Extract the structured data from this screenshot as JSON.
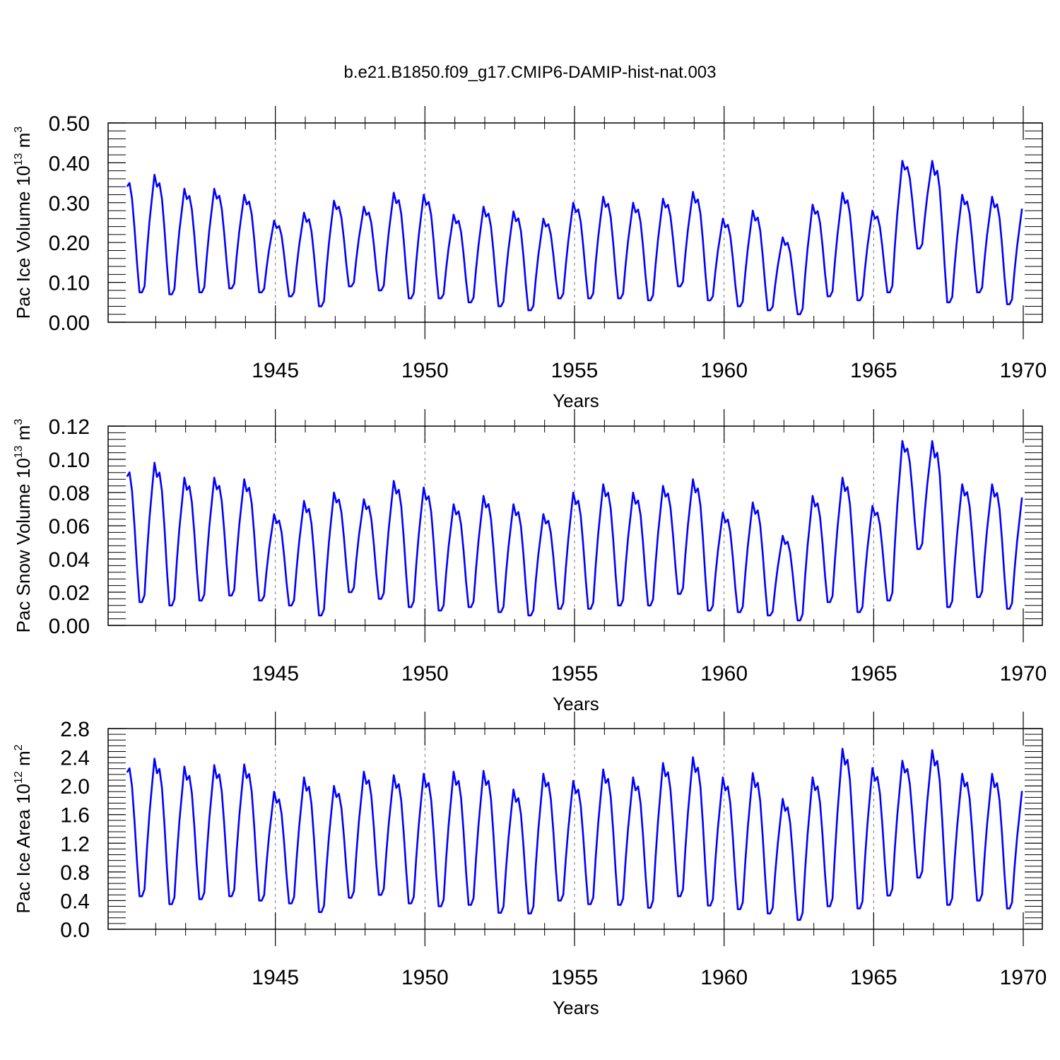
{
  "title": "b.e21.B1850.f09_g17.CMIP6-DAMIP-hist-nat.003",
  "colors": {
    "series": "#0000ff",
    "axis": "#000000",
    "grid": "#777777",
    "background": "#ffffff"
  },
  "chart_data": [
    {
      "type": "line",
      "ylabel": {
        "text": "Pac Ice Volume 10",
        "exponent": "13",
        "unit": "m",
        "unit_exponent": "3"
      },
      "xlabel": "Years",
      "xlim": [
        1940.0,
        1970.0
      ],
      "ylim": [
        0.0,
        0.5
      ],
      "y_ticks": [
        0.0,
        0.1,
        0.2,
        0.3,
        0.4,
        0.5
      ],
      "y_tick_labels": [
        "0.00",
        "0.10",
        "0.20",
        "0.30",
        "0.40",
        "0.50"
      ],
      "x_ticks": [
        1945,
        1950,
        1955,
        1960,
        1965,
        1970
      ],
      "x_tick_labels": [
        "1945",
        "1950",
        "1955",
        "1960",
        "1965",
        "1970"
      ],
      "grid": "vertical dashed at labeled years",
      "time_start": "1940-01",
      "frequency": "monthly",
      "series": [
        {
          "color": "#0000ff",
          "peaks": [
            0.37,
            0.335,
            0.335,
            0.32,
            0.255,
            0.275,
            0.305,
            0.29,
            0.325,
            0.32,
            0.27,
            0.29,
            0.278,
            0.26,
            0.3,
            0.315,
            0.3,
            0.31,
            0.327,
            0.26,
            0.28,
            0.213,
            0.295,
            0.325,
            0.28,
            0.405,
            0.405,
            0.32,
            0.315,
            0.285
          ],
          "troughs": [
            0.075,
            0.07,
            0.075,
            0.085,
            0.075,
            0.065,
            0.04,
            0.09,
            0.08,
            0.06,
            0.06,
            0.05,
            0.04,
            0.03,
            0.06,
            0.06,
            0.06,
            0.055,
            0.09,
            0.055,
            0.04,
            0.03,
            0.02,
            0.065,
            0.055,
            0.075,
            0.185,
            0.05,
            0.075,
            0.045
          ]
        }
      ]
    },
    {
      "type": "line",
      "ylabel": {
        "text": "Pac Snow Volume 10",
        "exponent": "13",
        "unit": "m",
        "unit_exponent": "3"
      },
      "xlabel": "Years",
      "xlim": [
        1940.0,
        1970.0
      ],
      "ylim": [
        0.0,
        0.12
      ],
      "y_ticks": [
        0.0,
        0.02,
        0.04,
        0.06,
        0.08,
        0.1,
        0.12
      ],
      "y_tick_labels": [
        "0.00",
        "0.02",
        "0.04",
        "0.06",
        "0.08",
        "0.10",
        "0.12"
      ],
      "x_ticks": [
        1945,
        1950,
        1955,
        1960,
        1965,
        1970
      ],
      "x_tick_labels": [
        "1945",
        "1950",
        "1955",
        "1960",
        "1965",
        "1970"
      ],
      "grid": "vertical dashed at labeled years",
      "time_start": "1940-01",
      "frequency": "monthly",
      "series": [
        {
          "color": "#0000ff",
          "peaks": [
            0.098,
            0.089,
            0.089,
            0.088,
            0.067,
            0.075,
            0.08,
            0.076,
            0.087,
            0.083,
            0.073,
            0.078,
            0.073,
            0.067,
            0.08,
            0.085,
            0.08,
            0.084,
            0.088,
            0.068,
            0.074,
            0.054,
            0.078,
            0.089,
            0.072,
            0.111,
            0.111,
            0.085,
            0.085,
            0.077
          ],
          "troughs": [
            0.014,
            0.012,
            0.015,
            0.018,
            0.015,
            0.012,
            0.006,
            0.02,
            0.016,
            0.011,
            0.009,
            0.011,
            0.008,
            0.006,
            0.01,
            0.01,
            0.012,
            0.012,
            0.019,
            0.009,
            0.008,
            0.006,
            0.003,
            0.014,
            0.008,
            0.015,
            0.046,
            0.011,
            0.017,
            0.01
          ]
        }
      ]
    },
    {
      "type": "line",
      "ylabel": {
        "text": "Pac Ice Area 10",
        "exponent": "12",
        "unit": "m",
        "unit_exponent": "2"
      },
      "xlabel": "Years",
      "xlim": [
        1940.0,
        1970.0
      ],
      "ylim": [
        0.0,
        2.8
      ],
      "y_ticks": [
        0.0,
        0.4,
        0.8,
        1.2,
        1.6,
        2.0,
        2.4,
        2.8
      ],
      "y_tick_labels": [
        "0.0",
        "0.4",
        "0.8",
        "1.2",
        "1.6",
        "2.0",
        "2.4",
        "2.8"
      ],
      "x_ticks": [
        1945,
        1950,
        1955,
        1960,
        1965,
        1970
      ],
      "x_tick_labels": [
        "1945",
        "1950",
        "1955",
        "1960",
        "1965",
        "1970"
      ],
      "grid": "vertical dashed at labeled years",
      "time_start": "1940-01",
      "frequency": "monthly",
      "series": [
        {
          "color": "#0000ff",
          "peaks": [
            2.38,
            2.27,
            2.29,
            2.3,
            1.92,
            2.12,
            2.0,
            2.2,
            2.15,
            2.17,
            2.2,
            2.21,
            1.95,
            2.17,
            2.07,
            2.23,
            2.12,
            2.32,
            2.4,
            2.12,
            2.18,
            1.82,
            2.12,
            2.52,
            2.25,
            2.35,
            2.5,
            2.17,
            2.17,
            1.93
          ],
          "troughs": [
            0.46,
            0.35,
            0.42,
            0.46,
            0.4,
            0.36,
            0.24,
            0.44,
            0.48,
            0.36,
            0.32,
            0.34,
            0.23,
            0.22,
            0.4,
            0.35,
            0.34,
            0.3,
            0.46,
            0.33,
            0.28,
            0.22,
            0.13,
            0.32,
            0.29,
            0.47,
            0.72,
            0.34,
            0.4,
            0.29
          ]
        }
      ]
    }
  ]
}
